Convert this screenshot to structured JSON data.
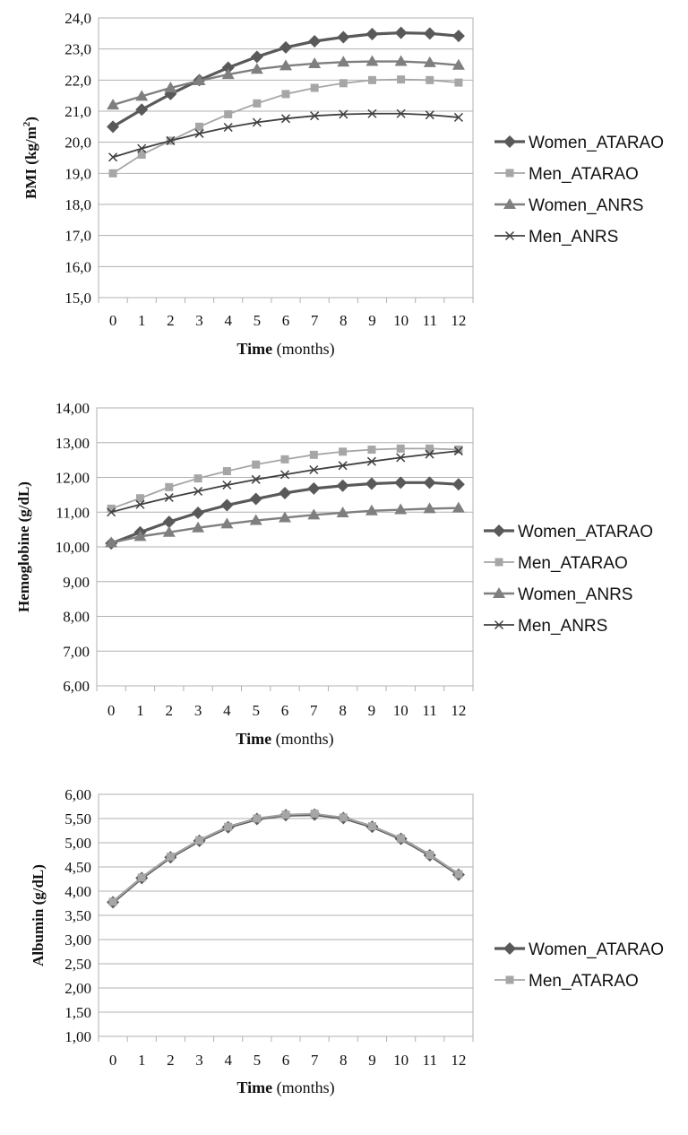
{
  "colors": {
    "women_atarao": "#595959",
    "men_atarao": "#a6a6a6",
    "women_anrs": "#7f7f7f",
    "men_anrs": "#404040",
    "grid": "#b0b0b0"
  },
  "chart_data": [
    {
      "type": "line",
      "ylabel_main": "BMI (kg/m",
      "ylabel_sup": "2",
      "ylabel_end": ")",
      "xlabel_bold": "Time",
      "xlabel_rest": " (months)",
      "x": [
        0,
        1,
        2,
        3,
        4,
        5,
        6,
        7,
        8,
        9,
        10,
        11,
        12
      ],
      "ylim": [
        15,
        24
      ],
      "yticks": [
        "15,0",
        "16,0",
        "17,0",
        "18,0",
        "19,0",
        "20,0",
        "21,0",
        "22,0",
        "23,0",
        "24,0"
      ],
      "grid": true,
      "legend_position": "right",
      "series": [
        {
          "name": "Women_ATARAO",
          "marker": "diamond",
          "color_key": "women_atarao",
          "width": 3.2,
          "values": [
            20.5,
            21.05,
            21.55,
            22.0,
            22.4,
            22.75,
            23.05,
            23.25,
            23.38,
            23.48,
            23.52,
            23.5,
            23.42
          ]
        },
        {
          "name": "Men_ATARAO",
          "marker": "square",
          "color_key": "men_atarao",
          "width": 1.8,
          "values": [
            19.0,
            19.6,
            20.05,
            20.5,
            20.9,
            21.25,
            21.55,
            21.75,
            21.9,
            22.0,
            22.02,
            22.0,
            21.92
          ]
        },
        {
          "name": "Women_ANRS",
          "marker": "triangle",
          "color_key": "women_anrs",
          "width": 2.4,
          "values": [
            21.2,
            21.48,
            21.75,
            21.98,
            22.18,
            22.35,
            22.46,
            22.53,
            22.58,
            22.6,
            22.6,
            22.56,
            22.48
          ]
        },
        {
          "name": "Men_ANRS",
          "marker": "x",
          "color_key": "men_anrs",
          "width": 1.8,
          "values": [
            19.52,
            19.8,
            20.05,
            20.28,
            20.48,
            20.64,
            20.76,
            20.85,
            20.9,
            20.92,
            20.92,
            20.88,
            20.8
          ]
        }
      ]
    },
    {
      "type": "line",
      "ylabel_main": "Hemoglobine (g/dL)",
      "xlabel_bold": "Time",
      "xlabel_rest": " (months)",
      "x": [
        0,
        1,
        2,
        3,
        4,
        5,
        6,
        7,
        8,
        9,
        10,
        11,
        12
      ],
      "ylim": [
        6,
        14
      ],
      "yticks": [
        "6,00",
        "7,00",
        "8,00",
        "9,00",
        "10,00",
        "11,00",
        "12,00",
        "13,00",
        "14,00"
      ],
      "grid": true,
      "legend_position": "right",
      "series": [
        {
          "name": "Women_ATARAO",
          "marker": "diamond",
          "color_key": "women_atarao",
          "width": 3.2,
          "values": [
            10.1,
            10.42,
            10.72,
            10.98,
            11.2,
            11.38,
            11.55,
            11.68,
            11.76,
            11.82,
            11.85,
            11.85,
            11.8
          ]
        },
        {
          "name": "Men_ATARAO",
          "marker": "square",
          "color_key": "men_atarao",
          "width": 1.8,
          "values": [
            11.1,
            11.4,
            11.72,
            11.97,
            12.18,
            12.37,
            12.52,
            12.65,
            12.74,
            12.8,
            12.83,
            12.83,
            12.8
          ]
        },
        {
          "name": "Women_ANRS",
          "marker": "triangle",
          "color_key": "women_anrs",
          "width": 2.4,
          "values": [
            10.12,
            10.3,
            10.42,
            10.55,
            10.66,
            10.76,
            10.84,
            10.92,
            10.98,
            11.04,
            11.07,
            11.1,
            11.12
          ]
        },
        {
          "name": "Men_ANRS",
          "marker": "x",
          "color_key": "men_anrs",
          "width": 1.8,
          "values": [
            11.0,
            11.22,
            11.42,
            11.6,
            11.78,
            11.94,
            12.08,
            12.22,
            12.34,
            12.46,
            12.57,
            12.67,
            12.76
          ]
        }
      ]
    },
    {
      "type": "line",
      "ylabel_main": "Albumin (g/dL)",
      "xlabel_bold": "Time",
      "xlabel_rest": " (months)",
      "x": [
        0,
        1,
        2,
        3,
        4,
        5,
        6,
        7,
        8,
        9,
        10,
        11,
        12
      ],
      "ylim": [
        1.0,
        6.0
      ],
      "yticks": [
        "1,00",
        "1,50",
        "2,00",
        "2,50",
        "3,00",
        "3,50",
        "4,00",
        "4,50",
        "5,00",
        "5,50",
        "6,00"
      ],
      "grid": true,
      "legend_position": "right",
      "series": [
        {
          "name": "Women_ATARAO",
          "marker": "diamond",
          "color_key": "women_atarao",
          "width": 3.2,
          "values": [
            3.77,
            4.27,
            4.7,
            5.04,
            5.32,
            5.49,
            5.57,
            5.58,
            5.51,
            5.33,
            5.08,
            4.74,
            4.34
          ]
        },
        {
          "name": "Men_ATARAO",
          "marker": "square",
          "color_key": "men_atarao",
          "width": 1.8,
          "values": [
            3.78,
            4.28,
            4.71,
            5.05,
            5.33,
            5.5,
            5.58,
            5.6,
            5.52,
            5.34,
            5.09,
            4.75,
            4.35
          ]
        }
      ]
    }
  ]
}
